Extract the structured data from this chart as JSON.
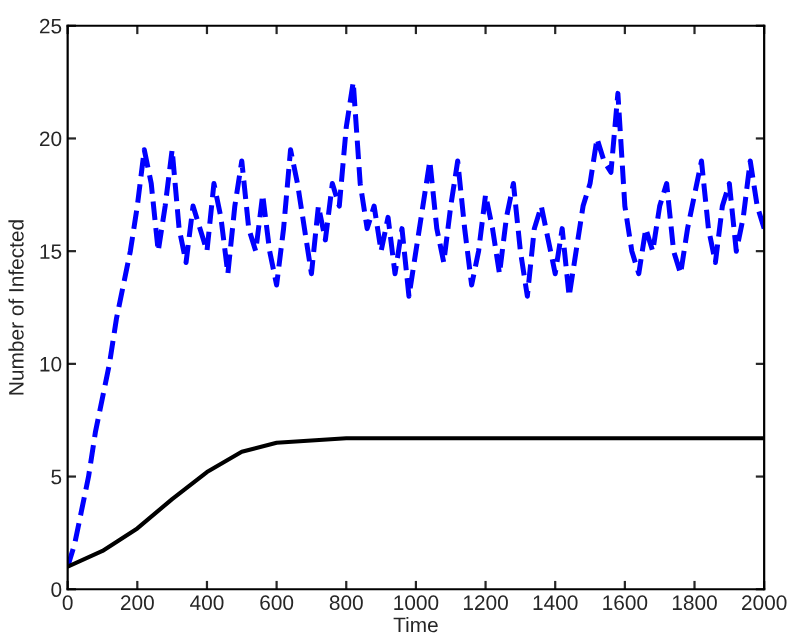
{
  "chart_data": {
    "type": "line",
    "xlabel": "Time",
    "ylabel": "Number of Infected",
    "xlim": [
      0,
      2000
    ],
    "xticks": [
      0,
      200,
      400,
      600,
      800,
      1000,
      1200,
      1400,
      1600,
      1800,
      2000
    ],
    "ylim": [
      0,
      25
    ],
    "yticks": [
      0,
      5,
      10,
      15,
      20,
      25
    ],
    "marker": "none",
    "series": [
      {
        "color": "#0000ff",
        "line_style": "dashed",
        "x": [
          0,
          20,
          40,
          60,
          80,
          100,
          120,
          140,
          160,
          180,
          200,
          220,
          240,
          260,
          280,
          300,
          320,
          340,
          360,
          380,
          400,
          420,
          440,
          460,
          480,
          500,
          520,
          540,
          560,
          580,
          600,
          620,
          640,
          660,
          680,
          700,
          720,
          740,
          760,
          780,
          800,
          820,
          840,
          860,
          880,
          900,
          920,
          940,
          960,
          980,
          1000,
          1020,
          1040,
          1060,
          1080,
          1100,
          1120,
          1140,
          1160,
          1180,
          1200,
          1220,
          1240,
          1260,
          1280,
          1300,
          1320,
          1340,
          1360,
          1380,
          1400,
          1420,
          1440,
          1460,
          1480,
          1500,
          1520,
          1540,
          1560,
          1580,
          1600,
          1620,
          1640,
          1660,
          1680,
          1700,
          1720,
          1740,
          1760,
          1780,
          1800,
          1820,
          1840,
          1860,
          1880,
          1900,
          1920,
          1940,
          1960,
          1980,
          2000
        ],
        "values": [
          1,
          2,
          3.5,
          5,
          7,
          8.5,
          10,
          12,
          13.5,
          15,
          17,
          19.5,
          18,
          15,
          17,
          19.5,
          16,
          14.5,
          17,
          16,
          15,
          18,
          16.5,
          14,
          17,
          19,
          16,
          15,
          17.5,
          15,
          13.5,
          16,
          19.5,
          18,
          16,
          14,
          17,
          15.5,
          18,
          17,
          20.5,
          22.5,
          18,
          16,
          17,
          15,
          16.5,
          14,
          16,
          13,
          15,
          17,
          19,
          16,
          14.5,
          17,
          19,
          16,
          13.5,
          15,
          17.5,
          16,
          14,
          16.5,
          18,
          15,
          13,
          16,
          17,
          15.5,
          14,
          16,
          13,
          15,
          17,
          18,
          20,
          19,
          18.5,
          22,
          17,
          15,
          14,
          16,
          15,
          17,
          18,
          15,
          14,
          16,
          17.5,
          19,
          16,
          14.5,
          17,
          18,
          15,
          16.5,
          19,
          17,
          16
        ]
      },
      {
        "color": "#000000",
        "line_style": "solid",
        "x": [
          0,
          100,
          200,
          300,
          400,
          500,
          600,
          700,
          800,
          1000,
          1500,
          2000
        ],
        "values": [
          1,
          1.7,
          2.7,
          4.0,
          5.2,
          6.1,
          6.5,
          6.6,
          6.7,
          6.7,
          6.7,
          6.7
        ]
      }
    ]
  }
}
